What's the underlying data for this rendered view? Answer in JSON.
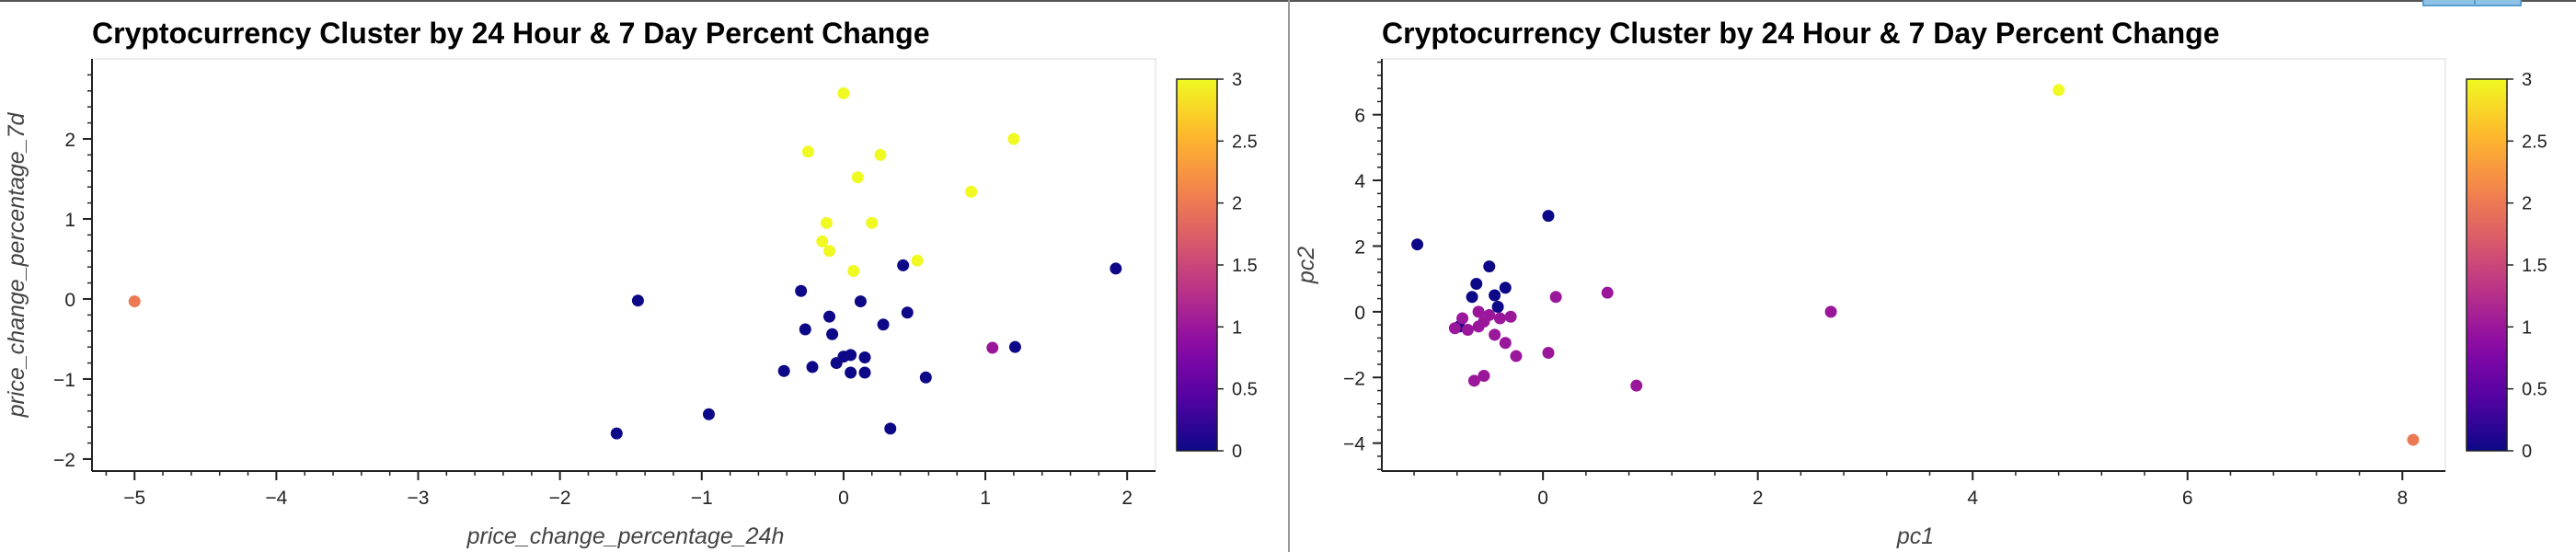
{
  "chart_data": [
    {
      "type": "scatter",
      "title": "Cryptocurrency Cluster by 24 Hour & 7 Day Percent Change",
      "xlabel": "price_change_percentage_24h",
      "ylabel": "price_change_percentage_7d",
      "xlim": [
        -5.3,
        2.2
      ],
      "ylim": [
        -2.15,
        3.0
      ],
      "x_ticks": [
        "−5",
        "−4",
        "−3",
        "−2",
        "−1",
        "0",
        "1",
        "2"
      ],
      "y_ticks": [
        "−2",
        "−1",
        "0",
        "1",
        "2"
      ],
      "grid": false,
      "colorbar": {
        "ticks": [
          "0",
          "0.5",
          "1",
          "1.5",
          "2",
          "2.5",
          "3"
        ],
        "min": 0,
        "max": 3,
        "colormap": "plasma"
      },
      "points": [
        {
          "x": -5.0,
          "y": -0.03,
          "cluster": 2
        },
        {
          "x": -1.6,
          "y": -1.68,
          "cluster": 0
        },
        {
          "x": -1.45,
          "y": -0.02,
          "cluster": 0
        },
        {
          "x": -0.95,
          "y": -1.44,
          "cluster": 0
        },
        {
          "x": -0.42,
          "y": -0.9,
          "cluster": 0
        },
        {
          "x": -0.3,
          "y": 0.1,
          "cluster": 0
        },
        {
          "x": -0.27,
          "y": -0.38,
          "cluster": 0
        },
        {
          "x": -0.22,
          "y": -0.85,
          "cluster": 0
        },
        {
          "x": -0.1,
          "y": -0.22,
          "cluster": 0
        },
        {
          "x": -0.08,
          "y": -0.44,
          "cluster": 0
        },
        {
          "x": -0.05,
          "y": -0.8,
          "cluster": 0
        },
        {
          "x": 0.0,
          "y": -0.72,
          "cluster": 0
        },
        {
          "x": 0.05,
          "y": -0.7,
          "cluster": 0
        },
        {
          "x": 0.05,
          "y": -0.92,
          "cluster": 0
        },
        {
          "x": 0.12,
          "y": -0.03,
          "cluster": 0
        },
        {
          "x": 0.15,
          "y": -0.73,
          "cluster": 0
        },
        {
          "x": 0.15,
          "y": -0.92,
          "cluster": 0
        },
        {
          "x": 0.28,
          "y": -0.32,
          "cluster": 0
        },
        {
          "x": 0.33,
          "y": -1.62,
          "cluster": 0
        },
        {
          "x": 0.42,
          "y": 0.42,
          "cluster": 0
        },
        {
          "x": 0.45,
          "y": -0.17,
          "cluster": 0
        },
        {
          "x": 0.58,
          "y": -0.98,
          "cluster": 0
        },
        {
          "x": 1.21,
          "y": -0.6,
          "cluster": 0
        },
        {
          "x": 1.92,
          "y": 0.38,
          "cluster": 0
        },
        {
          "x": 1.05,
          "y": -0.61,
          "cluster": 1
        },
        {
          "x": 0.0,
          "y": 2.57,
          "cluster": 3
        },
        {
          "x": -0.25,
          "y": 1.84,
          "cluster": 3
        },
        {
          "x": 0.26,
          "y": 1.8,
          "cluster": 3
        },
        {
          "x": 1.2,
          "y": 2.0,
          "cluster": 3
        },
        {
          "x": 0.1,
          "y": 1.52,
          "cluster": 3
        },
        {
          "x": 0.9,
          "y": 1.34,
          "cluster": 3
        },
        {
          "x": -0.12,
          "y": 0.95,
          "cluster": 3
        },
        {
          "x": 0.2,
          "y": 0.95,
          "cluster": 3
        },
        {
          "x": -0.15,
          "y": 0.72,
          "cluster": 3
        },
        {
          "x": -0.1,
          "y": 0.6,
          "cluster": 3
        },
        {
          "x": 0.07,
          "y": 0.35,
          "cluster": 3
        },
        {
          "x": 0.52,
          "y": 0.48,
          "cluster": 3
        }
      ]
    },
    {
      "type": "scatter",
      "title": "Cryptocurrency Cluster by 24 Hour & 7 Day Percent Change",
      "xlabel": "pc1",
      "ylabel": "pc2",
      "xlim": [
        -1.5,
        8.4
      ],
      "ylim": [
        -4.85,
        7.7
      ],
      "x_ticks": [
        "0",
        "2",
        "4",
        "6",
        "8"
      ],
      "y_ticks": [
        "−4",
        "−2",
        "0",
        "2",
        "4",
        "6"
      ],
      "grid": false,
      "colorbar": {
        "ticks": [
          "0",
          "0.5",
          "1",
          "1.5",
          "2",
          "2.5",
          "3"
        ],
        "min": 0,
        "max": 3,
        "colormap": "plasma"
      },
      "points": [
        {
          "x": -1.17,
          "y": 2.05,
          "cluster": 0
        },
        {
          "x": 0.05,
          "y": 2.92,
          "cluster": 0
        },
        {
          "x": -0.5,
          "y": 1.38,
          "cluster": 0
        },
        {
          "x": -0.35,
          "y": 0.73,
          "cluster": 0
        },
        {
          "x": -0.62,
          "y": 0.85,
          "cluster": 0
        },
        {
          "x": -0.66,
          "y": 0.45,
          "cluster": 0
        },
        {
          "x": -0.45,
          "y": 0.5,
          "cluster": 0
        },
        {
          "x": -0.42,
          "y": 0.15,
          "cluster": 0
        },
        {
          "x": -0.78,
          "y": -0.45,
          "cluster": 0
        },
        {
          "x": -0.75,
          "y": -0.2,
          "cluster": 1
        },
        {
          "x": -0.82,
          "y": -0.5,
          "cluster": 1
        },
        {
          "x": -0.7,
          "y": -0.55,
          "cluster": 1
        },
        {
          "x": -0.6,
          "y": -0.45,
          "cluster": 1
        },
        {
          "x": -0.6,
          "y": 0.0,
          "cluster": 1
        },
        {
          "x": -0.55,
          "y": -0.3,
          "cluster": 1
        },
        {
          "x": -0.5,
          "y": -0.1,
          "cluster": 1
        },
        {
          "x": -0.45,
          "y": -0.7,
          "cluster": 1
        },
        {
          "x": -0.4,
          "y": -0.2,
          "cluster": 1
        },
        {
          "x": -0.35,
          "y": -0.95,
          "cluster": 1
        },
        {
          "x": -0.3,
          "y": -0.15,
          "cluster": 1
        },
        {
          "x": -0.25,
          "y": -1.35,
          "cluster": 1
        },
        {
          "x": -0.55,
          "y": -1.95,
          "cluster": 1
        },
        {
          "x": -0.64,
          "y": -2.1,
          "cluster": 1
        },
        {
          "x": 0.05,
          "y": -1.25,
          "cluster": 1
        },
        {
          "x": 0.12,
          "y": 0.45,
          "cluster": 1
        },
        {
          "x": 0.6,
          "y": 0.58,
          "cluster": 1
        },
        {
          "x": 0.87,
          "y": -2.25,
          "cluster": 1
        },
        {
          "x": 2.68,
          "y": 0.0,
          "cluster": 1
        },
        {
          "x": 4.8,
          "y": 6.75,
          "cluster": 3
        },
        {
          "x": 8.1,
          "y": -3.9,
          "cluster": 2
        }
      ]
    }
  ]
}
